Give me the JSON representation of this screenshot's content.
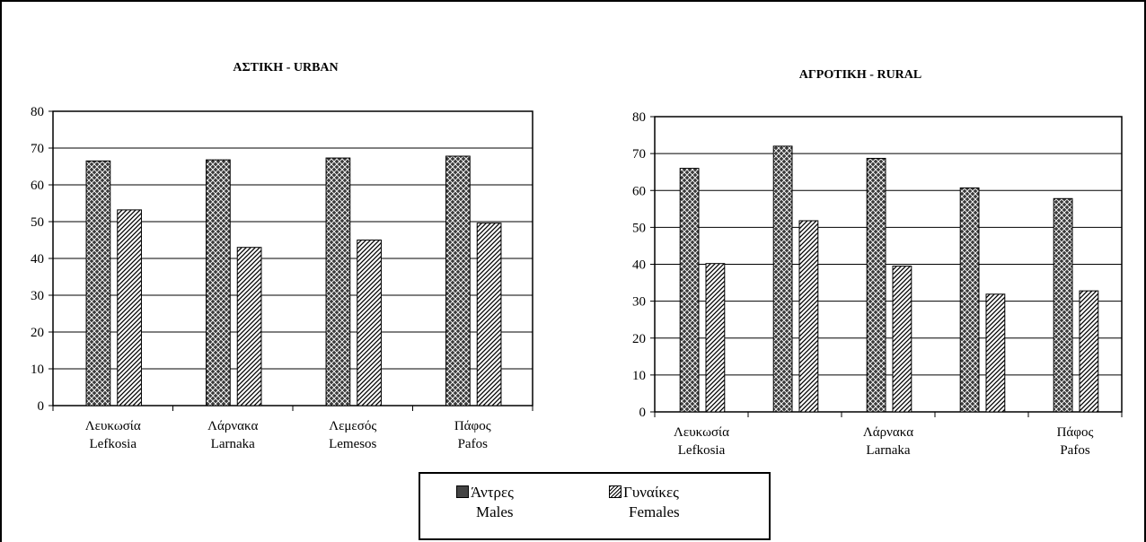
{
  "legend": {
    "males": {
      "label_gr": "Άντρες",
      "label_en": "Males"
    },
    "females": {
      "label_gr": "Γυναίκες",
      "label_en": "Females"
    }
  },
  "colors": {
    "males_fill": "#444444",
    "females_fill": "#ffffff",
    "stroke": "#000000"
  },
  "chart_data": [
    {
      "type": "bar",
      "title": "ΑΣΤΙΚΗ - URBAN",
      "categories": [
        {
          "gr": "Λευκωσία",
          "en": "Lefkosia"
        },
        {
          "gr": "Λάρνακα",
          "en": "Larnaka"
        },
        {
          "gr": "Λεμεσός",
          "en": "Lemesos"
        },
        {
          "gr": "Πάφος",
          "en": "Pafos"
        }
      ],
      "series": [
        {
          "name": "Άντρες Males",
          "values": [
            66.5,
            66.8,
            67.3,
            67.8
          ]
        },
        {
          "name": "Γυναίκες Females",
          "values": [
            53.2,
            43.0,
            45.0,
            49.6
          ]
        }
      ],
      "ylim": [
        0,
        80
      ],
      "yticks": [
        0,
        10,
        20,
        30,
        40,
        50,
        60,
        70,
        80
      ],
      "grid": true
    },
    {
      "type": "bar",
      "title": "ΑΓΡΟΤΙΚΗ - RURAL",
      "categories": [
        {
          "gr": "Λευκωσία",
          "en": "Lefkosia"
        },
        {
          "gr": "",
          "en": ""
        },
        {
          "gr": "Λάρνακα",
          "en": "Larnaka"
        },
        {
          "gr": "",
          "en": ""
        },
        {
          "gr": "Πάφος",
          "en": "Pafos"
        }
      ],
      "series": [
        {
          "name": "Άντρες Males",
          "values": [
            66.0,
            72.0,
            68.7,
            60.7,
            57.8
          ]
        },
        {
          "name": "Γυναίκες Females",
          "values": [
            40.2,
            51.8,
            39.5,
            31.9,
            32.8
          ]
        }
      ],
      "ylim": [
        0,
        80
      ],
      "yticks": [
        0,
        10,
        20,
        30,
        40,
        50,
        60,
        70,
        80
      ],
      "grid": true
    }
  ]
}
